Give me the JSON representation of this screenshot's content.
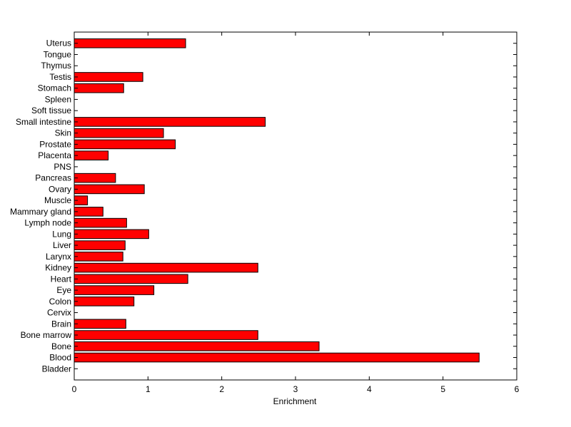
{
  "chart_data": {
    "type": "bar",
    "orientation": "horizontal",
    "title": "",
    "xlabel": "Enrichment",
    "ylabel": "",
    "xlim": [
      0,
      6
    ],
    "xticks": [
      "0",
      "1",
      "2",
      "3",
      "4",
      "5",
      "6"
    ],
    "grid": false,
    "legend": "none",
    "bar_color": "#ff0000",
    "categories": [
      "Bladder",
      "Blood",
      "Bone",
      "Bone marrow",
      "Brain",
      "Cervix",
      "Colon",
      "Eye",
      "Heart",
      "Kidney",
      "Larynx",
      "Liver",
      "Lung",
      "Lymph node",
      "Mammary gland",
      "Muscle",
      "Ovary",
      "Pancreas",
      "PNS",
      "Placenta",
      "Prostate",
      "Skin",
      "Small intestine",
      "Soft tissue",
      "Spleen",
      "Stomach",
      "Testis",
      "Thymus",
      "Tongue",
      "Uterus"
    ],
    "values": [
      0,
      5.49,
      3.32,
      2.49,
      0.7,
      0,
      0.81,
      1.08,
      1.54,
      2.49,
      0.66,
      0.69,
      1.01,
      0.71,
      0.39,
      0.18,
      0.95,
      0.56,
      0,
      0.46,
      1.37,
      1.21,
      2.59,
      0,
      0,
      0.67,
      0.93,
      0,
      0,
      1.51
    ]
  }
}
